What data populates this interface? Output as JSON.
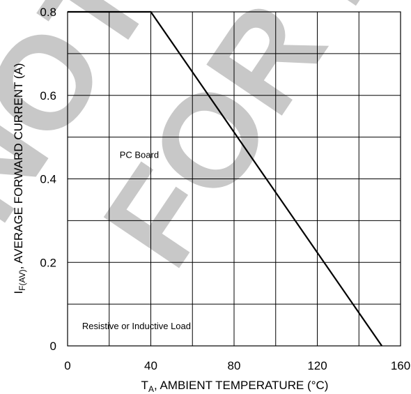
{
  "chart_data": {
    "type": "line",
    "title": "",
    "xlabel": {
      "main": "T",
      "sub": "A",
      "rest": ", AMBIENT TEMPERATURE (°C)"
    },
    "ylabel": {
      "main": "I",
      "sub": "F(AV)",
      "rest": ", AVERAGE FORWARD CURRENT (A)"
    },
    "xlim": [
      0,
      160
    ],
    "ylim": [
      0,
      0.8
    ],
    "x_ticks": [
      0,
      40,
      80,
      120,
      160
    ],
    "x_tick_labels": [
      "0",
      "40",
      "80",
      "120",
      "160"
    ],
    "y_ticks": [
      0,
      0.2,
      0.4,
      0.6,
      0.8
    ],
    "y_tick_labels": [
      "0",
      "0.2",
      "0.4",
      "0.6",
      "0.8"
    ],
    "x_grid": [
      0,
      20,
      40,
      60,
      80,
      100,
      120,
      140,
      160
    ],
    "y_grid": [
      0,
      0.1,
      0.2,
      0.3,
      0.4,
      0.5,
      0.6,
      0.7,
      0.8
    ],
    "grid": true,
    "series": [
      {
        "x": [
          0,
          40,
          151
        ],
        "y": [
          0.8,
          0.8,
          0
        ]
      }
    ],
    "annotations": [
      {
        "text": "PC Board",
        "x": 25,
        "y": 0.45
      },
      {
        "text": "Resistive or Inductive Load",
        "x": 7,
        "y": 0.04
      }
    ]
  },
  "watermark": {
    "line1": "NOT RECOMMENDED",
    "line2": "FOR NEW DESIGN",
    "color": "#c8c8c8"
  }
}
